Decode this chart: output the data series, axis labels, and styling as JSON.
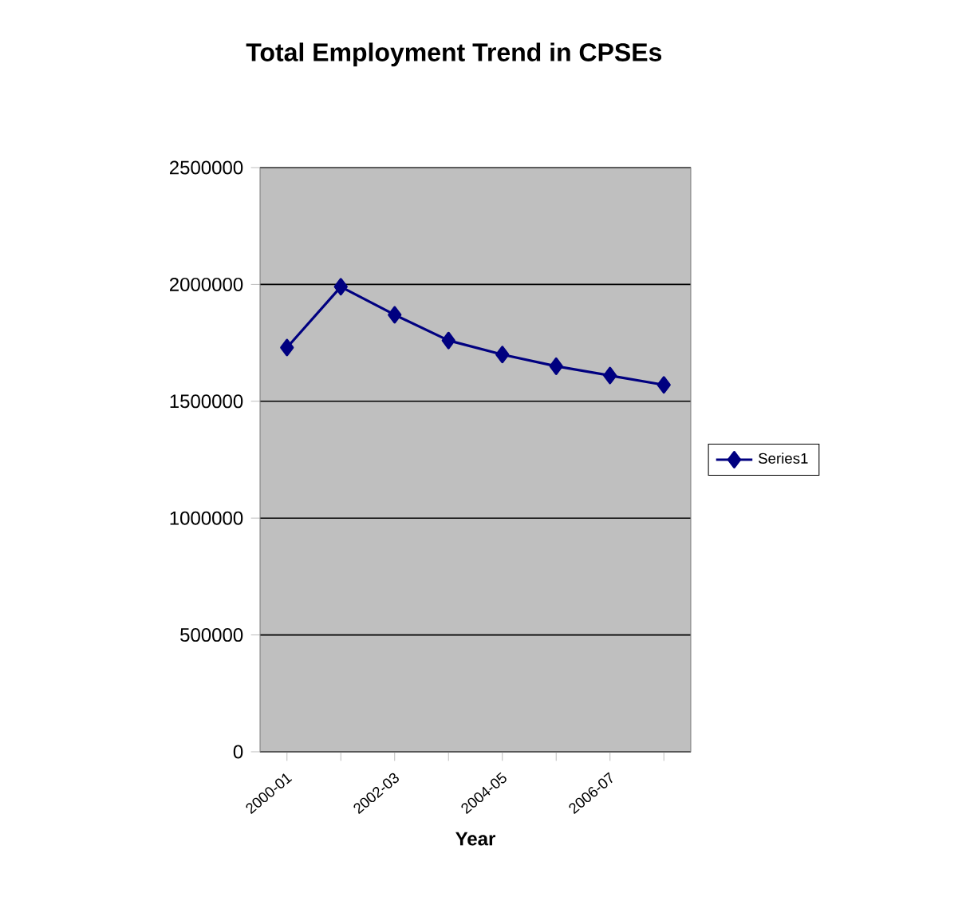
{
  "chart_data": {
    "type": "line",
    "title": "Total Employment Trend in CPSEs",
    "xlabel": "Year",
    "categories": [
      "2000-01",
      null,
      "2002-03",
      null,
      "2004-05",
      null,
      "2006-07",
      null
    ],
    "series": [
      {
        "name": "Series1",
        "color": "#000080",
        "values": [
          1730000,
          1990000,
          1870000,
          1760000,
          1700000,
          1650000,
          1610000,
          1570000
        ]
      }
    ],
    "ylim": [
      0,
      2500000
    ],
    "yticks": [
      0,
      500000,
      1000000,
      1500000,
      2000000,
      2500000
    ],
    "grid": "y",
    "legend": "right",
    "marker": "diamond",
    "line_style": "solid"
  }
}
